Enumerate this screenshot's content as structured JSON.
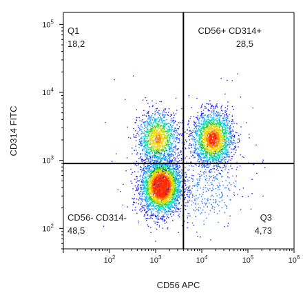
{
  "chart_data": {
    "type": "scatter",
    "subtype": "flow-cytometry-density-dot-plot",
    "xlabel": "CD56 APC",
    "ylabel": "CD314 FITC",
    "xscale": "log",
    "yscale": "log",
    "xlim": [
      10,
      1000000
    ],
    "ylim": [
      50,
      150000
    ],
    "x_ticks": [
      "10^2",
      "10^3",
      "10^4",
      "10^5",
      "10^6"
    ],
    "y_ticks": [
      "10^2",
      "10^3",
      "10^4",
      "10^5"
    ],
    "gate": {
      "x": 4000,
      "y": 900
    },
    "quadrants": [
      {
        "id": "Q1",
        "position": "top-left",
        "label": "Q1",
        "value": "18,2"
      },
      {
        "id": "Q2",
        "position": "top-right",
        "label": "CD56+ CD314+",
        "value": "28,5"
      },
      {
        "id": "Q3",
        "position": "bottom-right",
        "label": "Q3",
        "value": "4,73"
      },
      {
        "id": "Q4",
        "position": "bottom-left",
        "label": "CD56- CD314-",
        "value": "48,5"
      }
    ],
    "populations": [
      {
        "x": 1300,
        "y": 420,
        "percent": 48.5
      },
      {
        "x": 1100,
        "y": 2100,
        "percent": 18.2
      },
      {
        "x": 17000,
        "y": 2100,
        "percent": 28.5
      },
      {
        "x": 12000,
        "y": 400,
        "percent": 4.73
      }
    ],
    "colormap": [
      "#1a1aff",
      "#1f77ff",
      "#00bfff",
      "#00e0a0",
      "#33cc33",
      "#c8e000",
      "#ffd000",
      "#ff7f00",
      "#ff2a00"
    ],
    "grid": false
  }
}
